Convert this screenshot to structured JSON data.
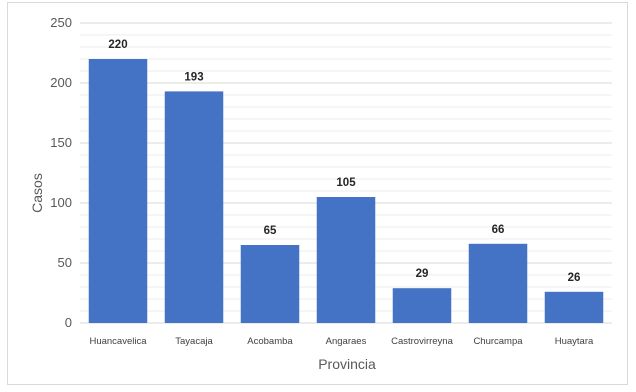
{
  "chart_data": {
    "type": "bar",
    "title": "",
    "xlabel": "Provincia",
    "ylabel": "Casos",
    "categories": [
      "Huancavelica",
      "Tayacaja",
      "Acobamba",
      "Angaraes",
      "Castrovirreyna",
      "Churcampa",
      "Huaytara"
    ],
    "values": [
      220,
      193,
      65,
      105,
      29,
      66,
      26
    ],
    "ylim": [
      0,
      250
    ],
    "yticks": [
      "0",
      "50",
      "100",
      "150",
      "200",
      "250"
    ],
    "grid": true,
    "legend": "none",
    "colors": {
      "bar": "#4472c4",
      "grid": "#d9d9d9"
    }
  }
}
